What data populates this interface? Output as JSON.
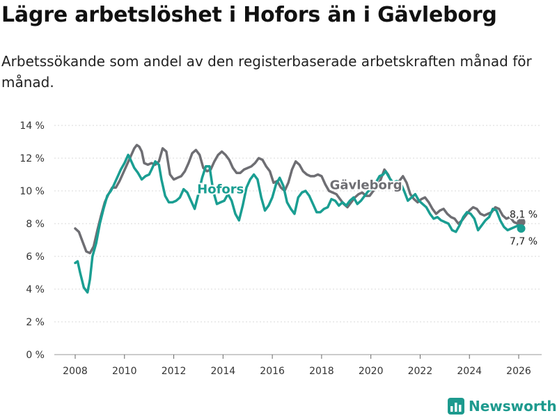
{
  "title": "Lägre arbetslöshet i Hofors än i Gävleborg",
  "subtitle": "Arbetssökande som andel av den registerbaserade arbetskraften månad för månad.",
  "brand": {
    "name": "Newsworthy",
    "icon": "bar-chart-logo-icon",
    "color": "#1d9a8e"
  },
  "chart_data": {
    "type": "line",
    "xlim": [
      2008,
      2026.2
    ],
    "ylim": [
      0,
      14
    ],
    "x_ticks": [
      2008,
      2010,
      2012,
      2014,
      2016,
      2018,
      2020,
      2022,
      2024,
      2026
    ],
    "x_tick_labels": [
      "2008",
      "2010",
      "2012",
      "2014",
      "2016",
      "2018",
      "2020",
      "2022",
      "2024",
      "2026"
    ],
    "y_ticks": [
      0,
      2,
      4,
      6,
      8,
      10,
      12,
      14
    ],
    "y_tick_labels": [
      "0 %",
      "2 %",
      "4 %",
      "6 %",
      "8 %",
      "10 %",
      "12 %",
      "14 %"
    ],
    "grid": "horizontal",
    "series": [
      {
        "name": "Gävleborg",
        "color": "#6e6e73",
        "label": "Gävleborg",
        "end_label": "8,1 %",
        "points": [
          [
            2008.0,
            7.7
          ],
          [
            2008.15,
            7.5
          ],
          [
            2008.3,
            6.9
          ],
          [
            2008.45,
            6.3
          ],
          [
            2008.6,
            6.2
          ],
          [
            2008.75,
            6.6
          ],
          [
            2008.9,
            7.6
          ],
          [
            2009.05,
            8.5
          ],
          [
            2009.2,
            9.3
          ],
          [
            2009.35,
            9.8
          ],
          [
            2009.5,
            10.2
          ],
          [
            2009.65,
            10.2
          ],
          [
            2009.8,
            10.6
          ],
          [
            2009.95,
            11.1
          ],
          [
            2010.1,
            11.6
          ],
          [
            2010.25,
            12.1
          ],
          [
            2010.4,
            12.6
          ],
          [
            2010.5,
            12.8
          ],
          [
            2010.6,
            12.7
          ],
          [
            2010.7,
            12.4
          ],
          [
            2010.8,
            11.7
          ],
          [
            2010.95,
            11.6
          ],
          [
            2011.1,
            11.7
          ],
          [
            2011.25,
            11.6
          ],
          [
            2011.4,
            11.8
          ],
          [
            2011.55,
            12.6
          ],
          [
            2011.7,
            12.4
          ],
          [
            2011.85,
            11.0
          ],
          [
            2012.0,
            10.7
          ],
          [
            2012.15,
            10.8
          ],
          [
            2012.3,
            10.9
          ],
          [
            2012.45,
            11.2
          ],
          [
            2012.6,
            11.7
          ],
          [
            2012.75,
            12.3
          ],
          [
            2012.9,
            12.5
          ],
          [
            2013.05,
            12.2
          ],
          [
            2013.2,
            11.4
          ],
          [
            2013.35,
            11.2
          ],
          [
            2013.5,
            11.3
          ],
          [
            2013.65,
            11.8
          ],
          [
            2013.8,
            12.2
          ],
          [
            2013.95,
            12.4
          ],
          [
            2014.1,
            12.2
          ],
          [
            2014.25,
            11.9
          ],
          [
            2014.4,
            11.4
          ],
          [
            2014.55,
            11.1
          ],
          [
            2014.7,
            11.1
          ],
          [
            2014.85,
            11.3
          ],
          [
            2015.0,
            11.4
          ],
          [
            2015.15,
            11.5
          ],
          [
            2015.3,
            11.7
          ],
          [
            2015.45,
            12.0
          ],
          [
            2015.6,
            11.9
          ],
          [
            2015.75,
            11.5
          ],
          [
            2015.9,
            11.2
          ],
          [
            2016.05,
            10.5
          ],
          [
            2016.2,
            10.6
          ],
          [
            2016.35,
            10.2
          ],
          [
            2016.5,
            10.0
          ],
          [
            2016.65,
            10.5
          ],
          [
            2016.8,
            11.3
          ],
          [
            2016.95,
            11.8
          ],
          [
            2017.1,
            11.6
          ],
          [
            2017.25,
            11.2
          ],
          [
            2017.4,
            11.0
          ],
          [
            2017.55,
            10.9
          ],
          [
            2017.7,
            10.9
          ],
          [
            2017.85,
            11.0
          ],
          [
            2018.0,
            10.9
          ],
          [
            2018.15,
            10.4
          ],
          [
            2018.3,
            10.0
          ],
          [
            2018.45,
            9.9
          ],
          [
            2018.6,
            9.8
          ],
          [
            2018.75,
            9.5
          ],
          [
            2018.9,
            9.2
          ],
          [
            2019.05,
            9.0
          ],
          [
            2019.2,
            9.3
          ],
          [
            2019.35,
            9.6
          ],
          [
            2019.5,
            9.8
          ],
          [
            2019.65,
            9.9
          ],
          [
            2019.8,
            9.7
          ],
          [
            2019.95,
            9.7
          ],
          [
            2020.1,
            10.0
          ],
          [
            2020.25,
            10.2
          ],
          [
            2020.4,
            10.7
          ],
          [
            2020.55,
            11.3
          ],
          [
            2020.7,
            11.0
          ],
          [
            2020.85,
            10.5
          ],
          [
            2021.0,
            10.4
          ],
          [
            2021.15,
            10.6
          ],
          [
            2021.3,
            10.9
          ],
          [
            2021.45,
            10.5
          ],
          [
            2021.6,
            9.8
          ],
          [
            2021.75,
            9.5
          ],
          [
            2021.9,
            9.3
          ],
          [
            2022.05,
            9.5
          ],
          [
            2022.2,
            9.6
          ],
          [
            2022.35,
            9.3
          ],
          [
            2022.5,
            8.9
          ],
          [
            2022.65,
            8.6
          ],
          [
            2022.8,
            8.8
          ],
          [
            2022.95,
            8.9
          ],
          [
            2023.1,
            8.6
          ],
          [
            2023.25,
            8.4
          ],
          [
            2023.4,
            8.3
          ],
          [
            2023.55,
            8.0
          ],
          [
            2023.7,
            8.2
          ],
          [
            2023.85,
            8.5
          ],
          [
            2024.0,
            8.8
          ],
          [
            2024.15,
            9.0
          ],
          [
            2024.3,
            8.9
          ],
          [
            2024.45,
            8.6
          ],
          [
            2024.6,
            8.5
          ],
          [
            2024.75,
            8.6
          ],
          [
            2024.9,
            8.7
          ],
          [
            2025.05,
            9.0
          ],
          [
            2025.2,
            8.9
          ],
          [
            2025.35,
            8.5
          ],
          [
            2025.5,
            8.3
          ],
          [
            2025.65,
            8.4
          ],
          [
            2025.8,
            8.1
          ],
          [
            2025.95,
            8.0
          ],
          [
            2026.1,
            8.1
          ]
        ]
      },
      {
        "name": "Hofors",
        "color": "#1a9e92",
        "label": "Hofors",
        "end_label": "7,7 %",
        "points": [
          [
            2008.0,
            5.6
          ],
          [
            2008.1,
            5.7
          ],
          [
            2008.2,
            5.0
          ],
          [
            2008.35,
            4.1
          ],
          [
            2008.5,
            3.8
          ],
          [
            2008.6,
            4.6
          ],
          [
            2008.7,
            6.0
          ],
          [
            2008.85,
            6.8
          ],
          [
            2009.0,
            8.0
          ],
          [
            2009.15,
            8.9
          ],
          [
            2009.3,
            9.7
          ],
          [
            2009.45,
            10.0
          ],
          [
            2009.55,
            10.3
          ],
          [
            2009.7,
            10.8
          ],
          [
            2009.85,
            11.3
          ],
          [
            2010.0,
            11.7
          ],
          [
            2010.15,
            12.2
          ],
          [
            2010.25,
            11.9
          ],
          [
            2010.4,
            11.4
          ],
          [
            2010.55,
            11.1
          ],
          [
            2010.7,
            10.7
          ],
          [
            2010.85,
            10.9
          ],
          [
            2011.0,
            11.0
          ],
          [
            2011.1,
            11.3
          ],
          [
            2011.25,
            11.8
          ],
          [
            2011.4,
            11.6
          ],
          [
            2011.5,
            10.7
          ],
          [
            2011.65,
            9.7
          ],
          [
            2011.8,
            9.3
          ],
          [
            2011.95,
            9.3
          ],
          [
            2012.1,
            9.4
          ],
          [
            2012.25,
            9.6
          ],
          [
            2012.4,
            10.1
          ],
          [
            2012.55,
            9.9
          ],
          [
            2012.7,
            9.4
          ],
          [
            2012.85,
            8.9
          ],
          [
            2013.0,
            9.8
          ],
          [
            2013.15,
            10.8
          ],
          [
            2013.3,
            11.5
          ],
          [
            2013.45,
            11.5
          ],
          [
            2013.6,
            10.0
          ],
          [
            2013.75,
            9.2
          ],
          [
            2013.9,
            9.3
          ],
          [
            2014.05,
            9.4
          ],
          [
            2014.2,
            9.8
          ],
          [
            2014.35,
            9.4
          ],
          [
            2014.5,
            8.6
          ],
          [
            2014.65,
            8.2
          ],
          [
            2014.8,
            9.1
          ],
          [
            2014.95,
            10.2
          ],
          [
            2015.1,
            10.7
          ],
          [
            2015.25,
            11.0
          ],
          [
            2015.4,
            10.7
          ],
          [
            2015.55,
            9.6
          ],
          [
            2015.7,
            8.8
          ],
          [
            2015.85,
            9.1
          ],
          [
            2016.0,
            9.6
          ],
          [
            2016.15,
            10.4
          ],
          [
            2016.3,
            10.8
          ],
          [
            2016.45,
            10.3
          ],
          [
            2016.6,
            9.3
          ],
          [
            2016.75,
            8.9
          ],
          [
            2016.9,
            8.6
          ],
          [
            2017.05,
            9.6
          ],
          [
            2017.2,
            9.9
          ],
          [
            2017.35,
            10.0
          ],
          [
            2017.5,
            9.7
          ],
          [
            2017.65,
            9.2
          ],
          [
            2017.8,
            8.7
          ],
          [
            2017.95,
            8.7
          ],
          [
            2018.1,
            8.9
          ],
          [
            2018.25,
            9.0
          ],
          [
            2018.4,
            9.5
          ],
          [
            2018.55,
            9.4
          ],
          [
            2018.7,
            9.1
          ],
          [
            2018.85,
            9.3
          ],
          [
            2019.0,
            9.1
          ],
          [
            2019.15,
            9.4
          ],
          [
            2019.3,
            9.6
          ],
          [
            2019.45,
            9.2
          ],
          [
            2019.6,
            9.4
          ],
          [
            2019.75,
            9.7
          ],
          [
            2019.9,
            10.0
          ],
          [
            2020.05,
            10.1
          ],
          [
            2020.2,
            10.5
          ],
          [
            2020.35,
            10.9
          ],
          [
            2020.5,
            11.0
          ],
          [
            2020.6,
            11.2
          ],
          [
            2020.75,
            10.8
          ],
          [
            2020.9,
            10.5
          ],
          [
            2021.05,
            10.6
          ],
          [
            2021.2,
            10.5
          ],
          [
            2021.35,
            10.0
          ],
          [
            2021.5,
            9.4
          ],
          [
            2021.65,
            9.6
          ],
          [
            2021.8,
            9.8
          ],
          [
            2021.95,
            9.4
          ],
          [
            2022.1,
            9.2
          ],
          [
            2022.25,
            9.0
          ],
          [
            2022.4,
            8.6
          ],
          [
            2022.55,
            8.3
          ],
          [
            2022.7,
            8.4
          ],
          [
            2022.85,
            8.2
          ],
          [
            2023.0,
            8.1
          ],
          [
            2023.15,
            8.0
          ],
          [
            2023.3,
            7.6
          ],
          [
            2023.45,
            7.5
          ],
          [
            2023.6,
            7.9
          ],
          [
            2023.75,
            8.4
          ],
          [
            2023.9,
            8.7
          ],
          [
            2024.05,
            8.6
          ],
          [
            2024.2,
            8.3
          ],
          [
            2024.35,
            7.6
          ],
          [
            2024.5,
            7.9
          ],
          [
            2024.65,
            8.2
          ],
          [
            2024.8,
            8.4
          ],
          [
            2024.95,
            8.9
          ],
          [
            2025.1,
            8.8
          ],
          [
            2025.25,
            8.2
          ],
          [
            2025.4,
            7.8
          ],
          [
            2025.55,
            7.6
          ],
          [
            2025.7,
            7.7
          ],
          [
            2025.85,
            7.8
          ],
          [
            2026.0,
            7.9
          ],
          [
            2026.1,
            7.7
          ]
        ]
      }
    ]
  }
}
